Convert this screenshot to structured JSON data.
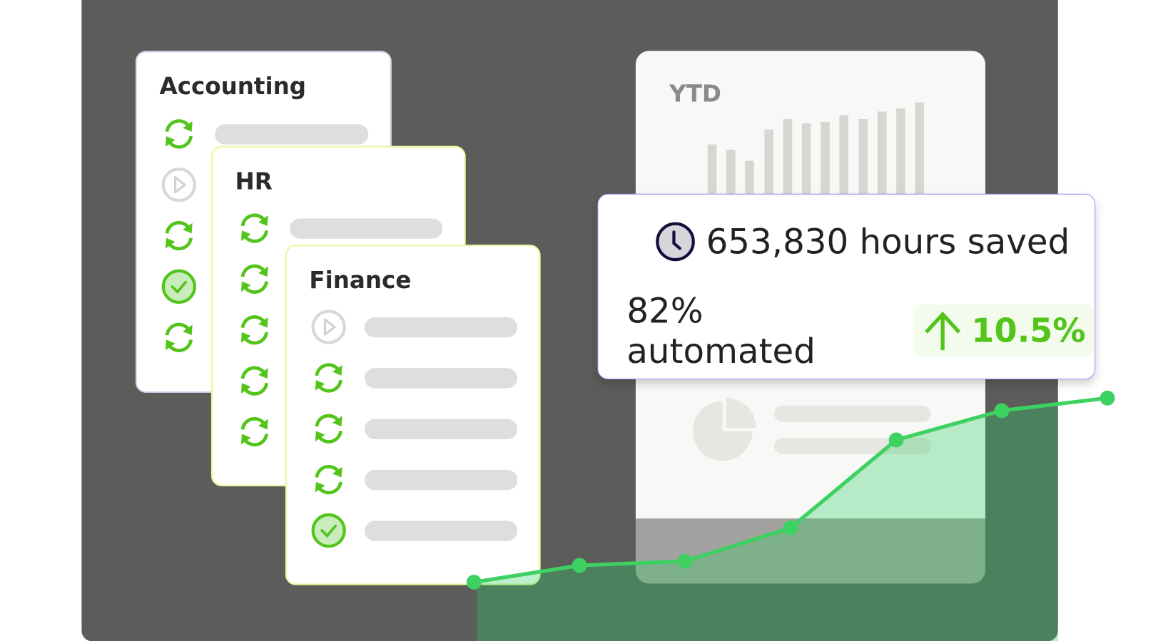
{
  "cards": [
    {
      "title": "Accounting",
      "border": "#d9d4f0",
      "rows": [
        "sync",
        "play",
        "sync",
        "check",
        "sync"
      ],
      "visible_bars": [
        true,
        false,
        false,
        false,
        false
      ]
    },
    {
      "title": "HR",
      "border": "#eef59c",
      "rows": [
        "sync",
        "sync",
        "sync",
        "sync",
        "sync"
      ],
      "visible_bars": [
        true,
        false,
        false,
        false,
        false
      ]
    },
    {
      "title": "Finance",
      "border": "#eef59c",
      "rows": [
        "play",
        "sync",
        "sync",
        "sync",
        "check"
      ],
      "visible_bars": [
        true,
        true,
        true,
        true,
        true
      ]
    }
  ],
  "ytd": {
    "title": "YTD",
    "bars": [
      66,
      59,
      44,
      86,
      100,
      94,
      96,
      105,
      100,
      110,
      114,
      122
    ]
  },
  "stats": {
    "hours_icon": "clock-icon",
    "hours_saved": "653,830 hours saved",
    "automated": "82% automated",
    "change_icon": "arrow-up-icon",
    "change": "10.5%"
  },
  "colors": {
    "accent_green": "#52c41a",
    "line_green": "#3dd162",
    "background": "#5c5c5a",
    "stats_border": "#b48cf0"
  },
  "chart_data": {
    "type": "line",
    "values": [
      1,
      1.4,
      1.5,
      2.3,
      4.4,
      5.1,
      5.4
    ]
  }
}
